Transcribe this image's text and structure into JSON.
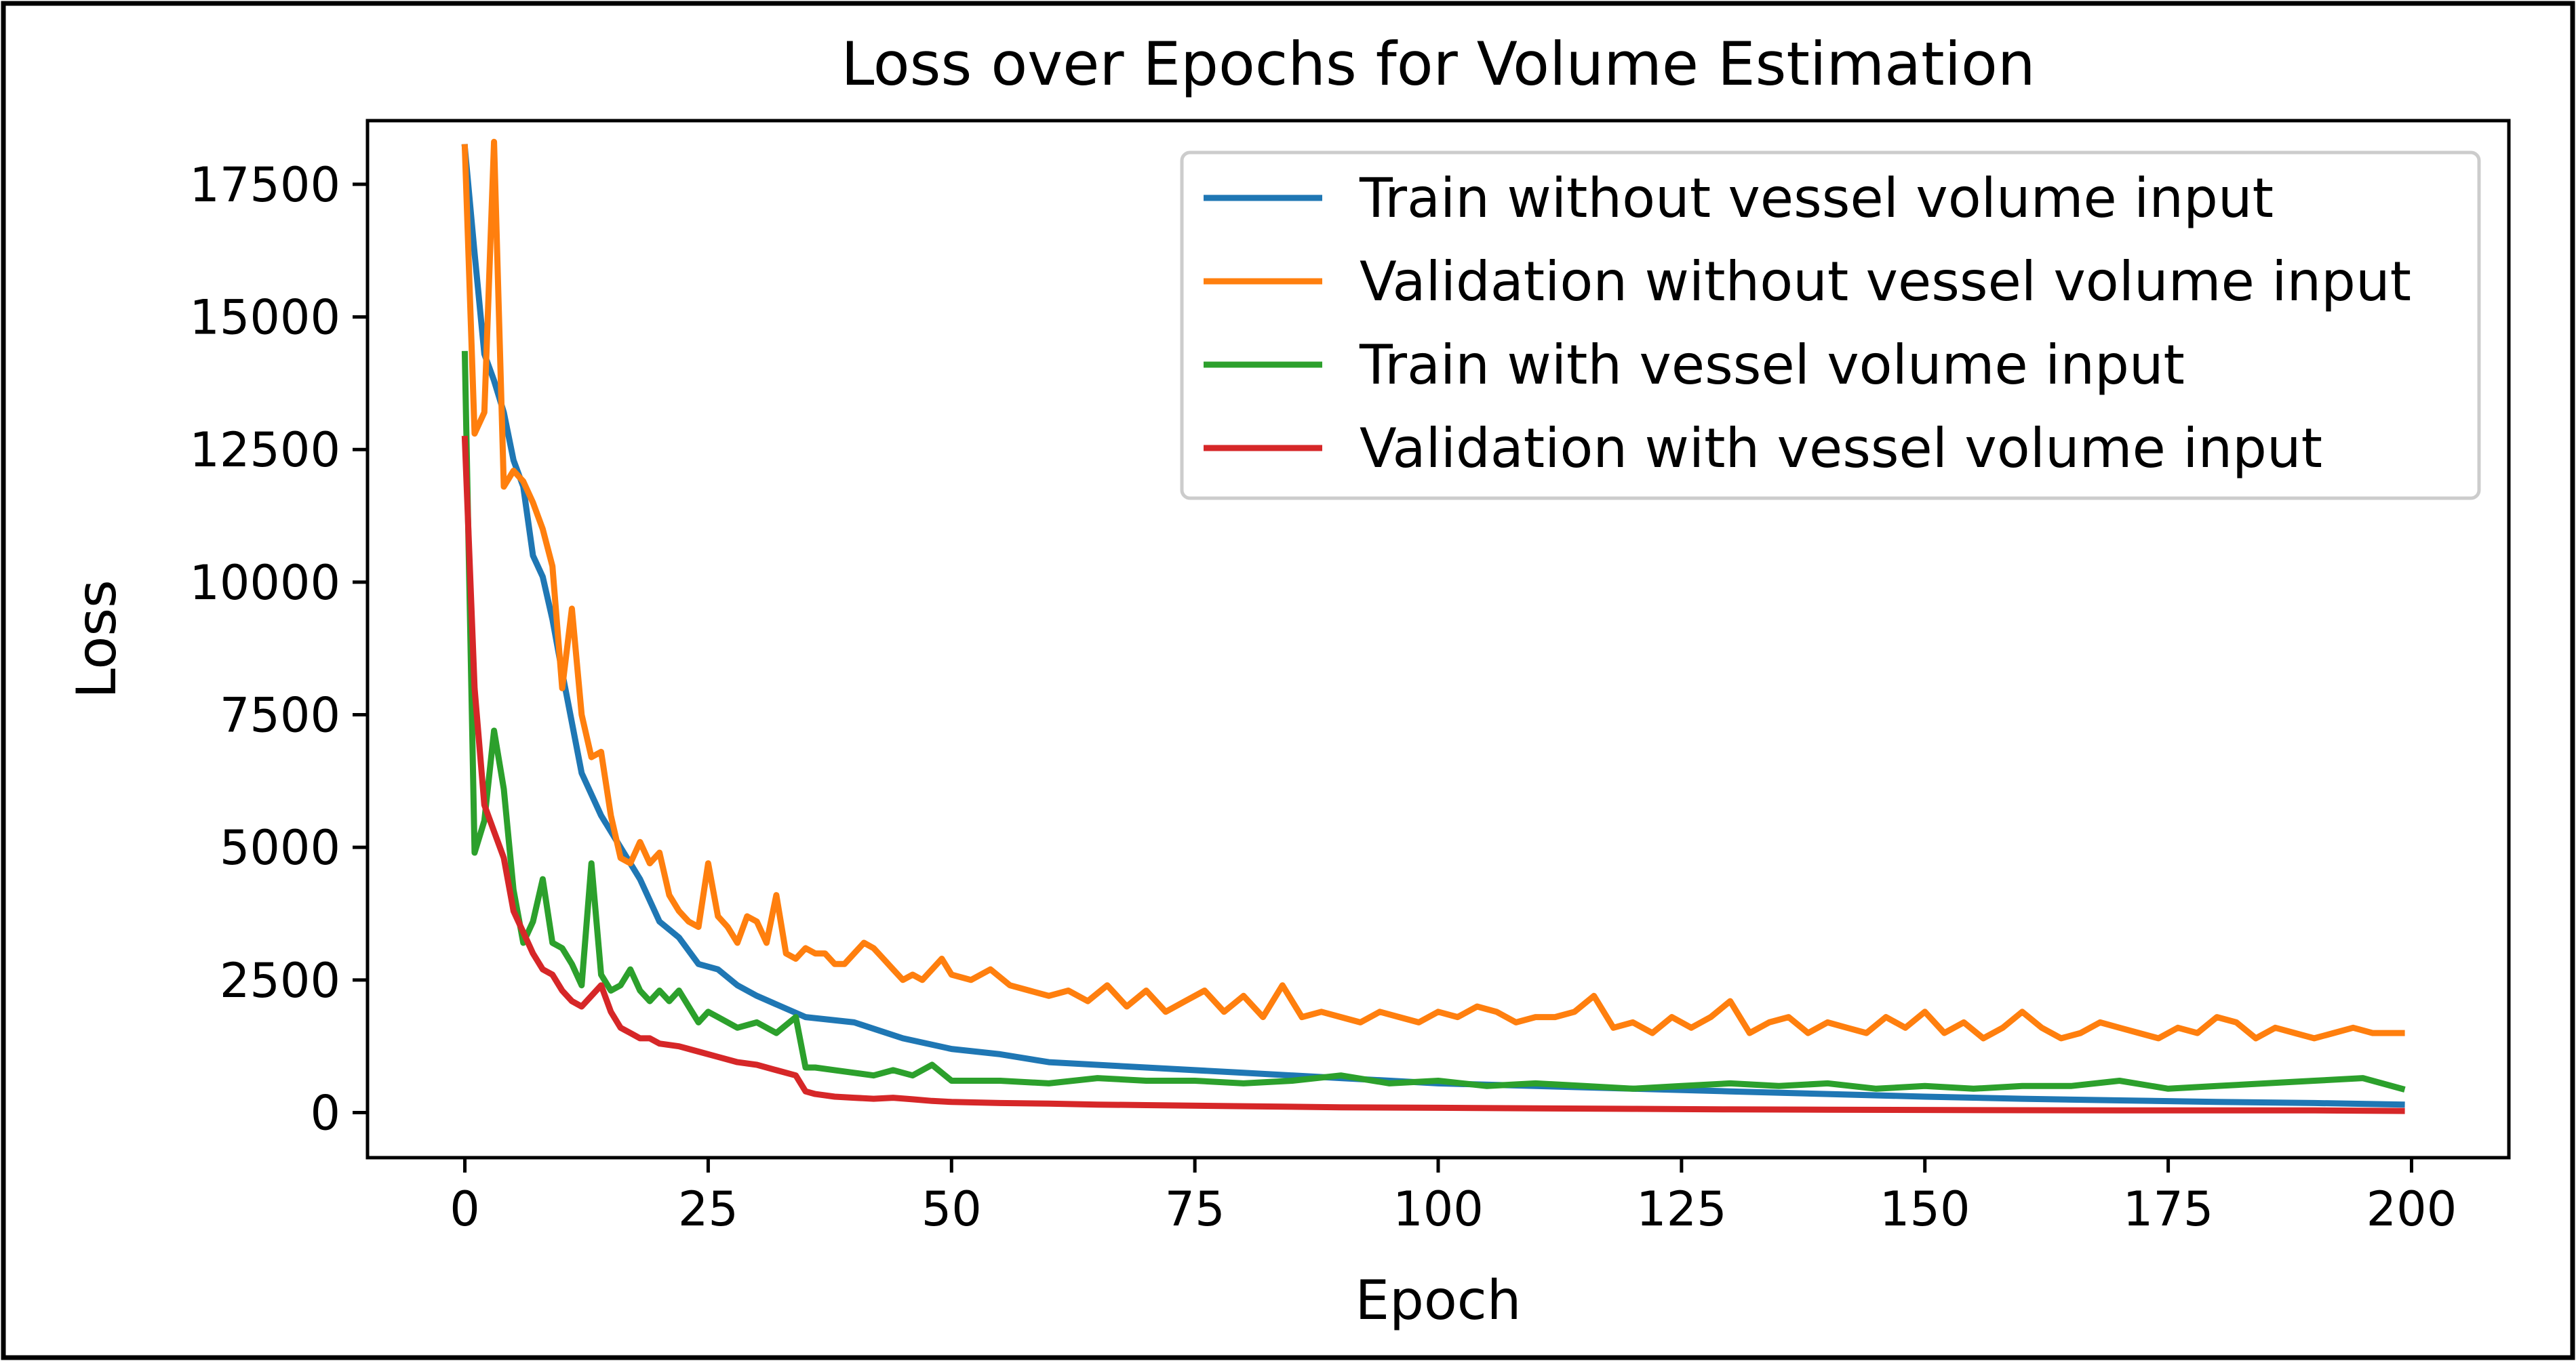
{
  "chart_data": {
    "type": "line",
    "title": "Loss over Epochs for Volume Estimation",
    "xlabel": "Epoch",
    "ylabel": "Loss",
    "xlim": [
      -10,
      210
    ],
    "ylim": [
      -850,
      18700
    ],
    "xticks": [
      0,
      25,
      50,
      75,
      100,
      125,
      150,
      175,
      200
    ],
    "yticks": [
      0,
      2500,
      5000,
      7500,
      10000,
      12500,
      15000,
      17500
    ],
    "grid": false,
    "legend_position": "top-right",
    "series": [
      {
        "name": "Train without vessel volume input",
        "color": "#1f77b4",
        "x": [
          0,
          1,
          2,
          3,
          4,
          5,
          6,
          7,
          8,
          9,
          10,
          12,
          14,
          16,
          18,
          20,
          22,
          24,
          26,
          28,
          30,
          35,
          40,
          45,
          50,
          55,
          60,
          70,
          80,
          90,
          100,
          110,
          120,
          130,
          140,
          150,
          160,
          170,
          180,
          190,
          199
        ],
        "y": [
          18200,
          16200,
          14300,
          13800,
          13200,
          12300,
          11800,
          10500,
          10100,
          9300,
          8300,
          6400,
          5600,
          5000,
          4400,
          3600,
          3300,
          2800,
          2700,
          2400,
          2200,
          1800,
          1700,
          1400,
          1200,
          1100,
          950,
          850,
          750,
          650,
          550,
          500,
          450,
          400,
          350,
          300,
          260,
          230,
          200,
          180,
          150
        ]
      },
      {
        "name": "Validation without vessel volume input",
        "color": "#ff7f0e",
        "x": [
          0,
          1,
          2,
          3,
          4,
          5,
          6,
          7,
          8,
          9,
          10,
          11,
          12,
          13,
          14,
          15,
          16,
          17,
          18,
          19,
          20,
          21,
          22,
          23,
          24,
          25,
          26,
          27,
          28,
          29,
          30,
          31,
          32,
          33,
          34,
          35,
          36,
          37,
          38,
          39,
          40,
          41,
          42,
          43,
          44,
          45,
          46,
          47,
          48,
          49,
          50,
          52,
          54,
          56,
          58,
          60,
          62,
          64,
          66,
          68,
          70,
          72,
          74,
          76,
          78,
          80,
          82,
          84,
          86,
          88,
          90,
          92,
          94,
          96,
          98,
          100,
          102,
          104,
          106,
          108,
          110,
          112,
          114,
          116,
          118,
          120,
          122,
          124,
          126,
          128,
          130,
          132,
          134,
          136,
          138,
          140,
          142,
          144,
          146,
          148,
          150,
          152,
          154,
          156,
          158,
          160,
          162,
          164,
          166,
          168,
          170,
          172,
          174,
          176,
          178,
          180,
          182,
          184,
          186,
          188,
          190,
          192,
          194,
          196,
          198,
          199
        ],
        "y": [
          18200,
          12800,
          13200,
          18300,
          11800,
          12100,
          11900,
          11500,
          11000,
          10300,
          8000,
          9500,
          7500,
          6700,
          6800,
          5600,
          4800,
          4700,
          5100,
          4700,
          4900,
          4100,
          3800,
          3600,
          3500,
          4700,
          3700,
          3500,
          3200,
          3700,
          3600,
          3200,
          4100,
          3000,
          2900,
          3100,
          3000,
          3000,
          2800,
          2800,
          3000,
          3200,
          3100,
          2900,
          2700,
          2500,
          2600,
          2500,
          2700,
          2900,
          2600,
          2500,
          2700,
          2400,
          2300,
          2200,
          2300,
          2100,
          2400,
          2000,
          2300,
          1900,
          2100,
          2300,
          1900,
          2200,
          1800,
          2400,
          1800,
          1900,
          1800,
          1700,
          1900,
          1800,
          1700,
          1900,
          1800,
          2000,
          1900,
          1700,
          1800,
          1800,
          1900,
          2200,
          1600,
          1700,
          1500,
          1800,
          1600,
          1800,
          2100,
          1500,
          1700,
          1800,
          1500,
          1700,
          1600,
          1500,
          1800,
          1600,
          1900,
          1500,
          1700,
          1400,
          1600,
          1900,
          1600,
          1400,
          1500,
          1700,
          1600,
          1500,
          1400,
          1600,
          1500,
          1800,
          1700,
          1400,
          1600,
          1500,
          1400,
          1500,
          1600,
          1500,
          1500,
          1500
        ]
      },
      {
        "name": "Train with vessel volume input",
        "color": "#2ca02c",
        "x": [
          0,
          1,
          2,
          3,
          4,
          5,
          6,
          7,
          8,
          9,
          10,
          11,
          12,
          13,
          14,
          15,
          16,
          17,
          18,
          19,
          20,
          21,
          22,
          23,
          24,
          25,
          26,
          28,
          30,
          32,
          34,
          35,
          36,
          38,
          40,
          42,
          44,
          46,
          48,
          50,
          55,
          60,
          65,
          70,
          75,
          80,
          85,
          90,
          95,
          100,
          105,
          110,
          115,
          120,
          125,
          130,
          135,
          140,
          145,
          150,
          155,
          160,
          165,
          170,
          175,
          180,
          185,
          190,
          195,
          199
        ],
        "y": [
          14300,
          4900,
          5500,
          7200,
          6100,
          4200,
          3200,
          3600,
          4400,
          3200,
          3100,
          2800,
          2400,
          4700,
          2600,
          2300,
          2400,
          2700,
          2300,
          2100,
          2300,
          2100,
          2300,
          2000,
          1700,
          1900,
          1800,
          1600,
          1700,
          1500,
          1800,
          850,
          850,
          800,
          750,
          700,
          800,
          700,
          900,
          600,
          600,
          550,
          650,
          600,
          600,
          550,
          600,
          700,
          550,
          600,
          500,
          550,
          500,
          450,
          500,
          550,
          500,
          550,
          450,
          500,
          450,
          500,
          500,
          600,
          450,
          500,
          550,
          600,
          650,
          450
        ]
      },
      {
        "name": "Validation with vessel volume input",
        "color": "#d62728",
        "x": [
          0,
          1,
          2,
          3,
          4,
          5,
          6,
          7,
          8,
          9,
          10,
          11,
          12,
          13,
          14,
          15,
          16,
          17,
          18,
          19,
          20,
          22,
          24,
          26,
          28,
          30,
          32,
          34,
          35,
          36,
          38,
          40,
          42,
          44,
          46,
          48,
          50,
          55,
          60,
          65,
          70,
          80,
          90,
          100,
          110,
          120,
          130,
          140,
          150,
          160,
          170,
          180,
          190,
          199
        ],
        "y": [
          12700,
          8000,
          5800,
          5300,
          4800,
          3800,
          3400,
          3000,
          2700,
          2600,
          2300,
          2100,
          2000,
          2200,
          2400,
          1900,
          1600,
          1500,
          1400,
          1400,
          1300,
          1250,
          1150,
          1050,
          950,
          900,
          800,
          700,
          400,
          350,
          300,
          280,
          260,
          280,
          250,
          220,
          200,
          180,
          170,
          150,
          140,
          120,
          100,
          90,
          80,
          70,
          60,
          55,
          50,
          45,
          40,
          40,
          40,
          30
        ]
      }
    ]
  }
}
